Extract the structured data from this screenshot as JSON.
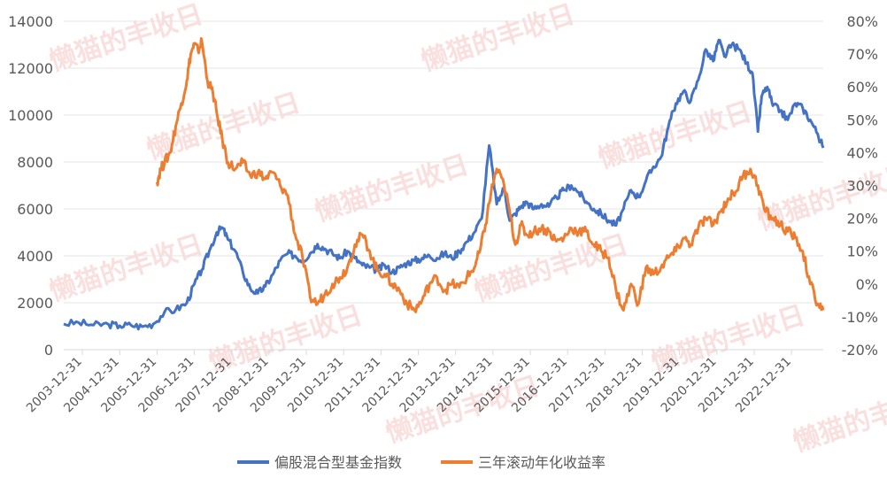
{
  "chart_data": {
    "type": "line",
    "title": "",
    "x_tick_labels": [
      "2003-12-31",
      "2004-12-31",
      "2005-12-31",
      "2006-12-31",
      "2007-12-31",
      "2008-12-31",
      "2009-12-31",
      "2010-12-31",
      "2011-12-31",
      "2012-12-31",
      "2013-12-31",
      "2014-12-31",
      "2015-12-31",
      "2016-12-31",
      "2017-12-31",
      "2018-12-31",
      "2019-12-31",
      "2020-12-31",
      "2021-12-31",
      "2022-12-31"
    ],
    "y_left": {
      "min": 0,
      "max": 14000,
      "ticks": [
        "0",
        "2000",
        "4000",
        "6000",
        "8000",
        "10000",
        "12000",
        "14000"
      ]
    },
    "y_right": {
      "min": -20,
      "max": 80,
      "ticks": [
        "-20%",
        "-10%",
        "0%",
        "10%",
        "20%",
        "30%",
        "40%",
        "50%",
        "60%",
        "70%",
        "80%"
      ]
    },
    "grid": true,
    "legend_position": "bottom",
    "watermark": "懒猫的丰收日",
    "series": [
      {
        "name": "偏股混合型基金指数",
        "axis": "left",
        "color": "#4472C4",
        "x": [
          2003.5,
          2003.9,
          2004.3,
          2004.7,
          2005.0,
          2005.3,
          2005.6,
          2005.9,
          2006.2,
          2006.5,
          2006.8,
          2007.0,
          2007.2,
          2007.4,
          2007.6,
          2007.75,
          2007.9,
          2008.1,
          2008.3,
          2008.5,
          2008.7,
          2008.9,
          2009.1,
          2009.3,
          2009.5,
          2009.7,
          2009.9,
          2010.1,
          2010.3,
          2010.5,
          2010.7,
          2010.9,
          2011.1,
          2011.3,
          2011.5,
          2011.7,
          2011.9,
          2012.1,
          2012.3,
          2012.5,
          2012.7,
          2012.9,
          2013.1,
          2013.3,
          2013.5,
          2013.7,
          2013.9,
          2014.1,
          2014.3,
          2014.5,
          2014.7,
          2014.9,
          2015.1,
          2015.3,
          2015.45,
          2015.6,
          2015.75,
          2015.9,
          2016.1,
          2016.3,
          2016.5,
          2016.7,
          2016.9,
          2017.1,
          2017.3,
          2017.5,
          2017.7,
          2017.9,
          2018.1,
          2018.3,
          2018.5,
          2018.7,
          2018.9,
          2019.1,
          2019.3,
          2019.5,
          2019.7,
          2019.9,
          2020.1,
          2020.3,
          2020.5,
          2020.7,
          2020.9,
          2021.05,
          2021.2,
          2021.4,
          2021.6,
          2021.8,
          2021.95,
          2022.1,
          2022.2,
          2022.35,
          2022.5,
          2022.7,
          2022.9,
          2023.1,
          2023.3,
          2023.5,
          2023.7,
          2023.85
        ],
        "values": [
          1100,
          1150,
          1050,
          1080,
          1020,
          1050,
          980,
          1100,
          1600,
          1700,
          2000,
          2800,
          3400,
          4200,
          5000,
          5200,
          4700,
          4200,
          3300,
          2600,
          2400,
          2700,
          3200,
          3800,
          4100,
          4000,
          3800,
          4100,
          4500,
          4300,
          4100,
          3900,
          4200,
          3900,
          3600,
          3500,
          3400,
          3600,
          3300,
          3500,
          3700,
          3800,
          3900,
          4000,
          3900,
          4100,
          3900,
          4200,
          4600,
          5000,
          5600,
          8700,
          6200,
          6900,
          5500,
          5800,
          6100,
          6300,
          6000,
          6200,
          6100,
          6500,
          6800,
          7000,
          6700,
          6300,
          6000,
          5800,
          5500,
          5300,
          6000,
          6800,
          6500,
          7200,
          7800,
          8200,
          9500,
          10500,
          11000,
          10600,
          11500,
          12800,
          12300,
          13200,
          12500,
          13000,
          12800,
          12200,
          11800,
          9300,
          10800,
          11200,
          10400,
          10200,
          9800,
          10500,
          10300,
          9800,
          9200,
          8600
        ]
      },
      {
        "name": "三年滚动年化收益率",
        "axis": "right",
        "color": "#ED7D31",
        "x": [
          2006.0,
          2006.1,
          2006.2,
          2006.35,
          2006.5,
          2006.65,
          2006.8,
          2006.9,
          2007.0,
          2007.1,
          2007.2,
          2007.35,
          2007.5,
          2007.6,
          2007.75,
          2007.9,
          2008.1,
          2008.3,
          2008.5,
          2008.7,
          2008.9,
          2009.1,
          2009.3,
          2009.5,
          2009.7,
          2009.9,
          2010.1,
          2010.3,
          2010.5,
          2010.7,
          2010.9,
          2011.1,
          2011.3,
          2011.5,
          2011.7,
          2011.9,
          2012.1,
          2012.3,
          2012.5,
          2012.7,
          2012.9,
          2013.1,
          2013.3,
          2013.5,
          2013.7,
          2013.9,
          2014.1,
          2014.3,
          2014.5,
          2014.65,
          2014.8,
          2014.95,
          2015.1,
          2015.3,
          2015.45,
          2015.6,
          2015.75,
          2015.9,
          2016.1,
          2016.3,
          2016.5,
          2016.7,
          2016.9,
          2017.1,
          2017.3,
          2017.5,
          2017.7,
          2017.9,
          2018.1,
          2018.3,
          2018.5,
          2018.7,
          2018.9,
          2019.1,
          2019.3,
          2019.5,
          2019.7,
          2019.9,
          2020.1,
          2020.3,
          2020.5,
          2020.7,
          2020.9,
          2021.1,
          2021.3,
          2021.5,
          2021.7,
          2021.9,
          2022.1,
          2022.3,
          2022.5,
          2022.7,
          2022.9,
          2023.1,
          2023.3,
          2023.5,
          2023.7,
          2023.85
        ],
        "values": [
          31,
          35,
          37,
          40,
          48,
          55,
          62,
          70,
          73,
          71,
          74,
          62,
          58,
          52,
          44,
          37,
          35,
          37,
          33,
          34,
          32,
          34,
          30,
          27,
          15,
          8,
          -4,
          -6,
          -3,
          0,
          2,
          5,
          12,
          15,
          10,
          4,
          3,
          0,
          -2,
          -6,
          -8,
          -5,
          0,
          2,
          -2,
          0,
          -1,
          2,
          5,
          10,
          18,
          28,
          35,
          30,
          22,
          12,
          18,
          15,
          16,
          17,
          16,
          13,
          14,
          17,
          16,
          16,
          12,
          10,
          8,
          -2,
          -8,
          0,
          -6,
          5,
          3,
          5,
          8,
          10,
          14,
          12,
          17,
          20,
          18,
          22,
          26,
          28,
          33,
          35,
          30,
          22,
          20,
          18,
          16,
          14,
          10,
          0,
          -6,
          -8
        ]
      }
    ]
  }
}
